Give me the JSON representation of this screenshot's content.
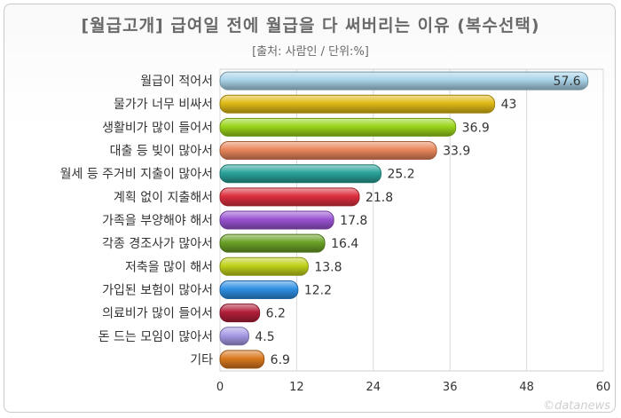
{
  "chart_data": {
    "type": "bar",
    "orientation": "horizontal",
    "title": "[월급고개] 급여일 전에 월급을 다 써버리는 이유 (복수선택)",
    "subtitle": "[출처: 사람인 / 단위:%]",
    "categories": [
      "월급이 적어서",
      "물가가 너무 비싸서",
      "생활비가 많이 들어서",
      "대출 등 빚이 많아서",
      "월세 등 주거비 지출이 많아서",
      "계획 없이 지출해서",
      "가족을 부양해야 해서",
      "각종 경조사가 많아서",
      "저축을 많이 해서",
      "가입된 보험이 많아서",
      "의료비가 많이 들어서",
      "돈 드는 모임이 많아서",
      "기타"
    ],
    "values": [
      57.6,
      43,
      36.9,
      33.9,
      25.2,
      21.8,
      17.8,
      16.4,
      13.8,
      12.2,
      6.2,
      4.5,
      6.9
    ],
    "value_labels": [
      "57.6",
      "43",
      "36.9",
      "33.9",
      "25.2",
      "21.8",
      "17.8",
      "16.4",
      "13.8",
      "12.2",
      "6.2",
      "4.5",
      "6.9"
    ],
    "colors": [
      "#a9d3e8",
      "#e0ba16",
      "#9ad51b",
      "#e8865a",
      "#2aa39a",
      "#dd2f3e",
      "#9a53d2",
      "#6aa126",
      "#c0d11a",
      "#2f8fe3",
      "#b31e3a",
      "#a69ae6",
      "#d9781e"
    ],
    "xlim": [
      0,
      60
    ],
    "xticks": [
      0,
      12,
      24,
      36,
      48,
      60
    ],
    "xtick_labels": [
      "0",
      "12",
      "24",
      "36",
      "48",
      "60"
    ],
    "grid": true
  },
  "watermark": "©datanews"
}
